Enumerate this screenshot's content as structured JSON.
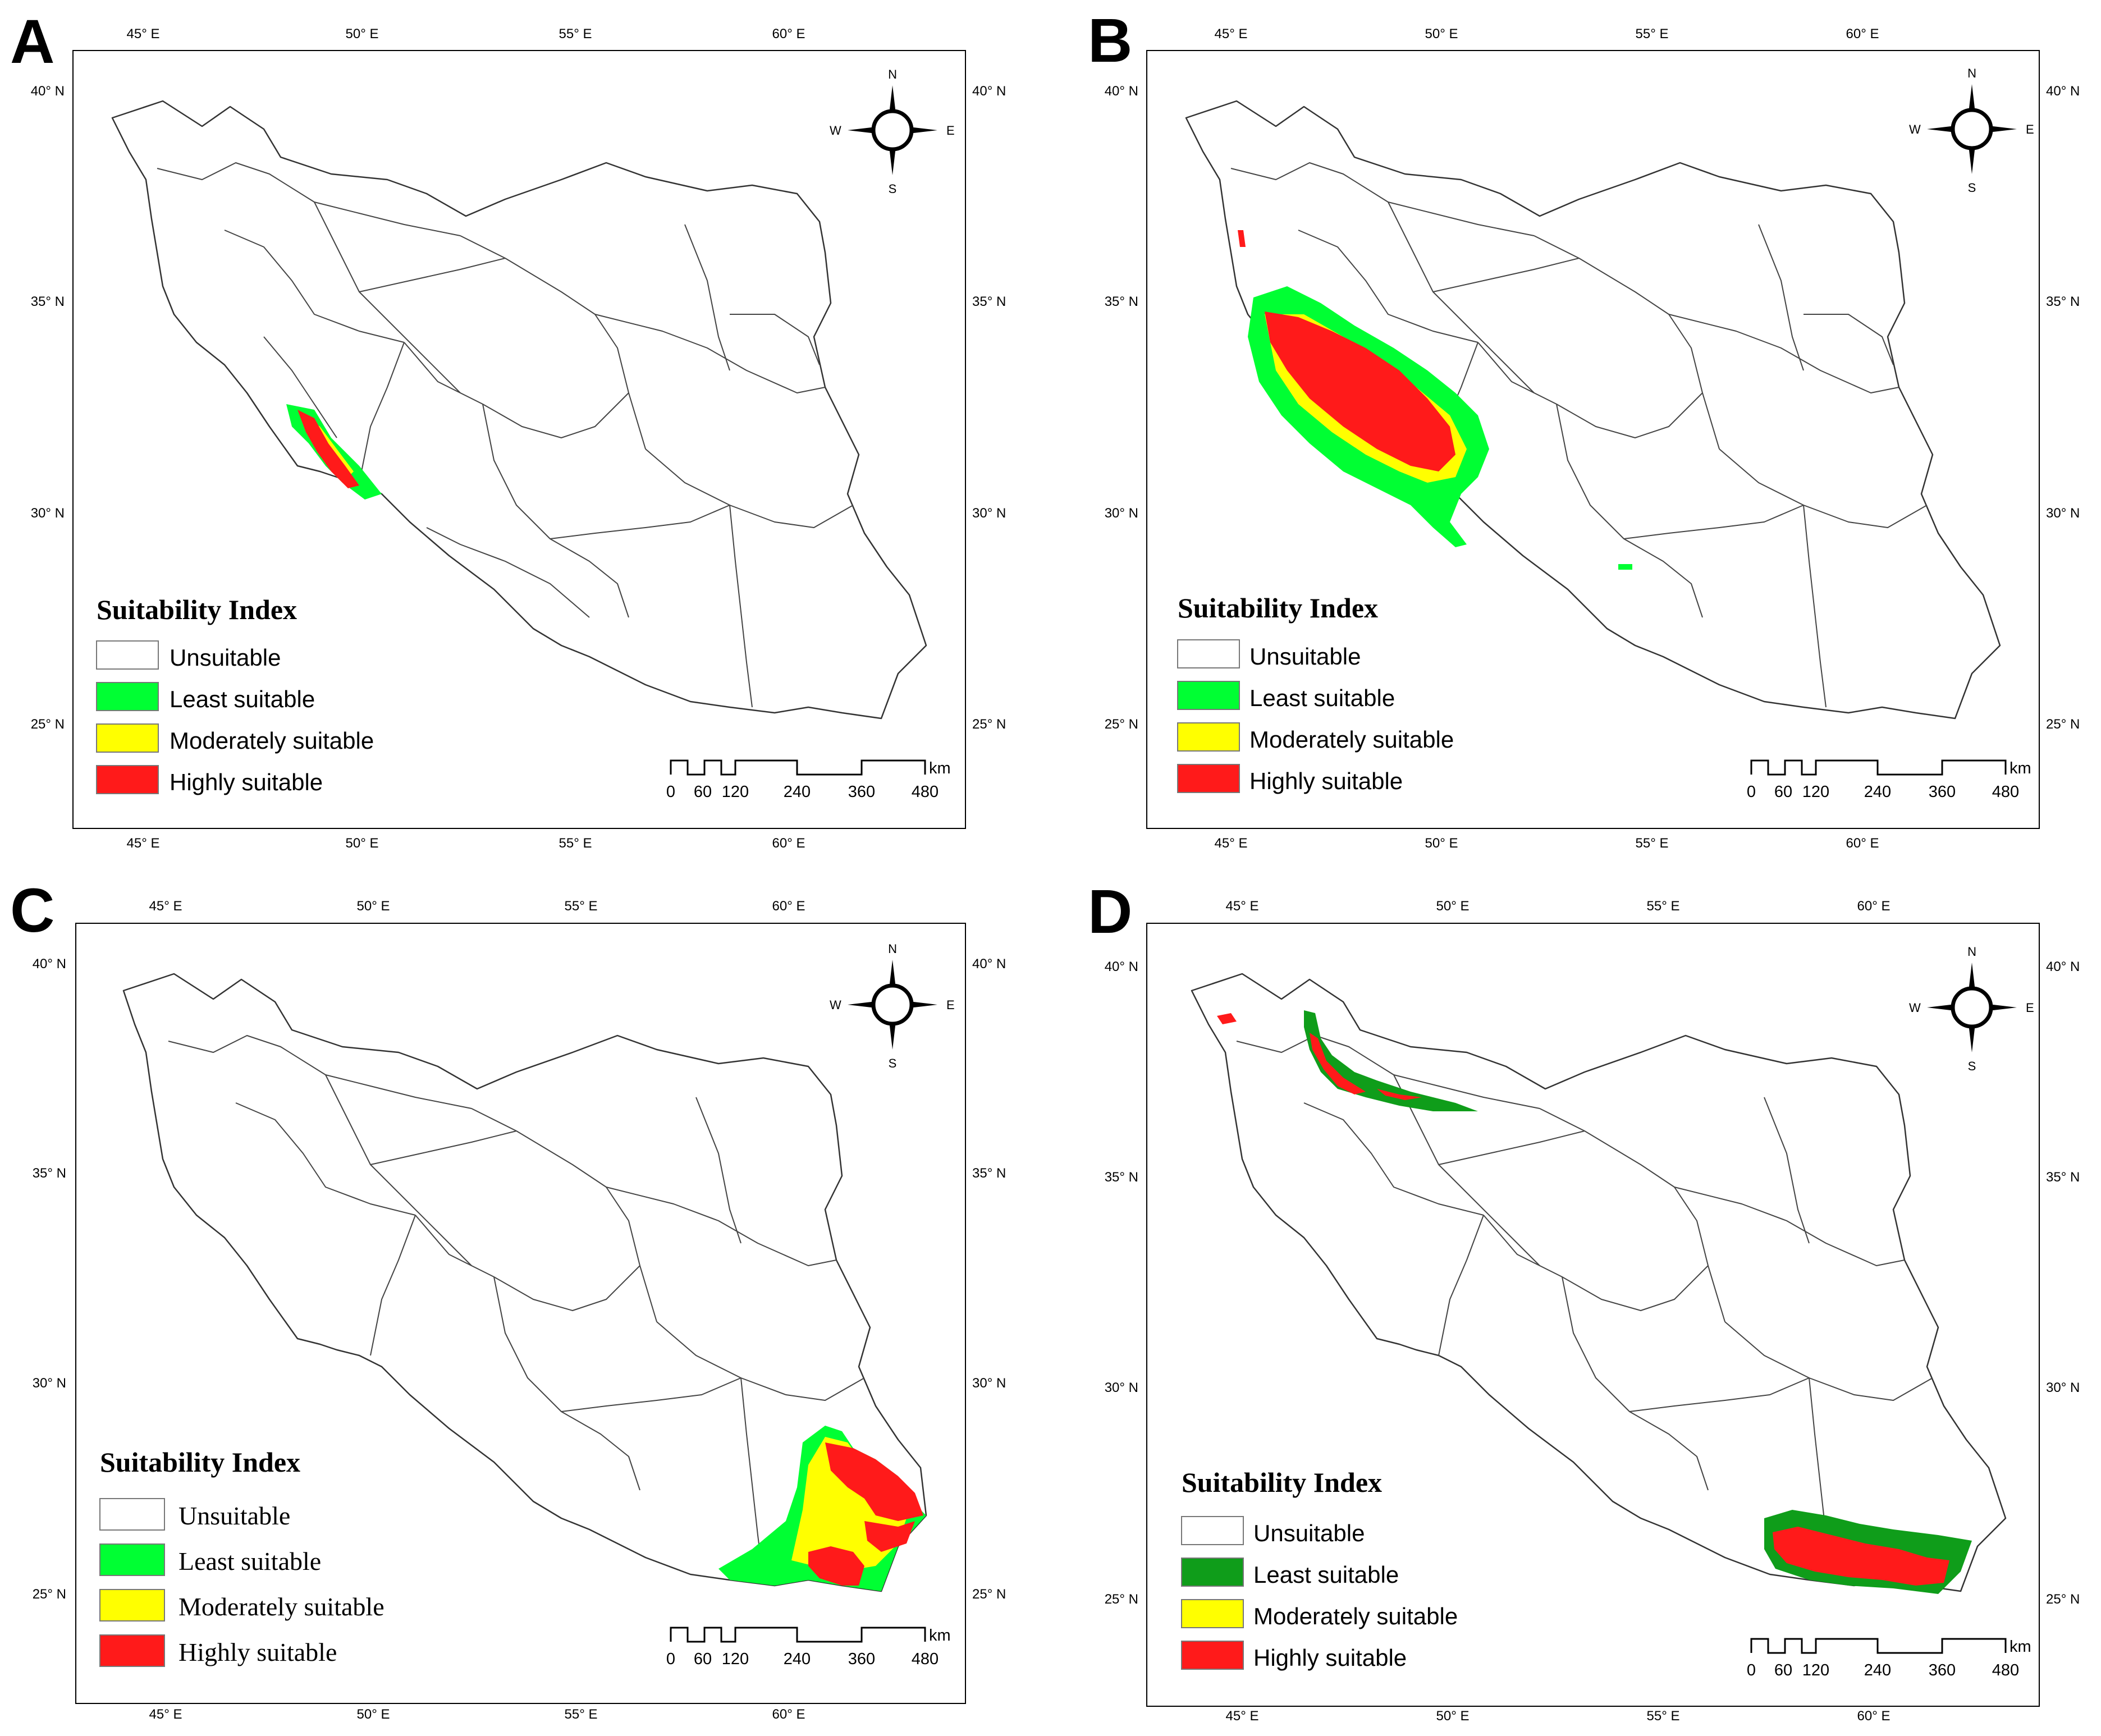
{
  "colors": {
    "unsuitable": "#ffffff",
    "least": "#00ff33",
    "least_dark": "#0f9d1a",
    "moderate": "#ffff00",
    "high": "#ff1a1a"
  },
  "lon_ticks": [
    "45° E",
    "50° E",
    "55° E",
    "60° E"
  ],
  "lat_ticks": [
    "40° N",
    "35° N",
    "30° N",
    "25° N"
  ],
  "compass": {
    "n": "N",
    "s": "S",
    "e": "E",
    "w": "W",
    "icon": "compass-rose-icon"
  },
  "scale_bar": {
    "unit": "km",
    "labels": [
      "0",
      "60",
      "120",
      "240",
      "360",
      "480"
    ]
  },
  "legend": {
    "title": "Suitability Index",
    "items": [
      "Unsuitable",
      "Least suitable",
      "Moderately suitable",
      "Highly suitable"
    ]
  },
  "panels": [
    {
      "letter": "A",
      "least_color": "#00ff33"
    },
    {
      "letter": "B",
      "least_color": "#00ff33"
    },
    {
      "letter": "C",
      "least_color": "#00ff33"
    },
    {
      "letter": "D",
      "least_color": "#0f9d1a"
    }
  ]
}
